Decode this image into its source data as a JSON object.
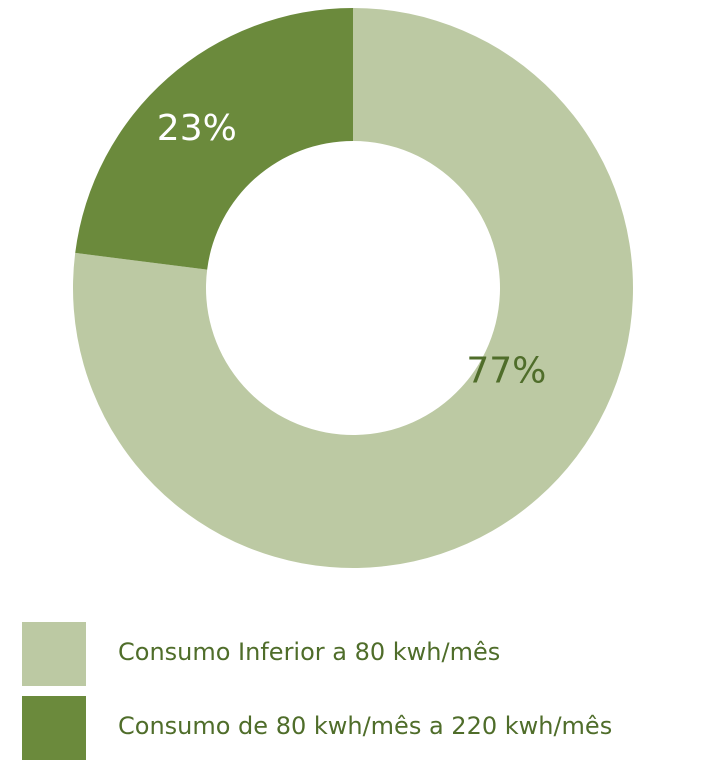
{
  "chart_data": {
    "type": "pie",
    "title": "",
    "categories": [
      "Consumo Inferior a 80 kwh/mês",
      "Consumo de 80 kwh/mês a 220 kwh/mês"
    ],
    "values": [
      77,
      23
    ],
    "labels": [
      "77%",
      "23%"
    ],
    "colors": [
      "#bcc9a3",
      "#6b8a3c"
    ],
    "label_colors": [
      "#4f6d2a",
      "#ffffff"
    ],
    "donut": true,
    "legend_position": "bottom-left"
  },
  "legend": {
    "items": [
      {
        "label": "Consumo Inferior a 80 kwh/mês",
        "color": "#bcc9a3"
      },
      {
        "label": "Consumo de 80 kwh/mês a 220 kwh/mês",
        "color": "#6b8a3c"
      }
    ],
    "text_color": "#4f6d2a"
  }
}
